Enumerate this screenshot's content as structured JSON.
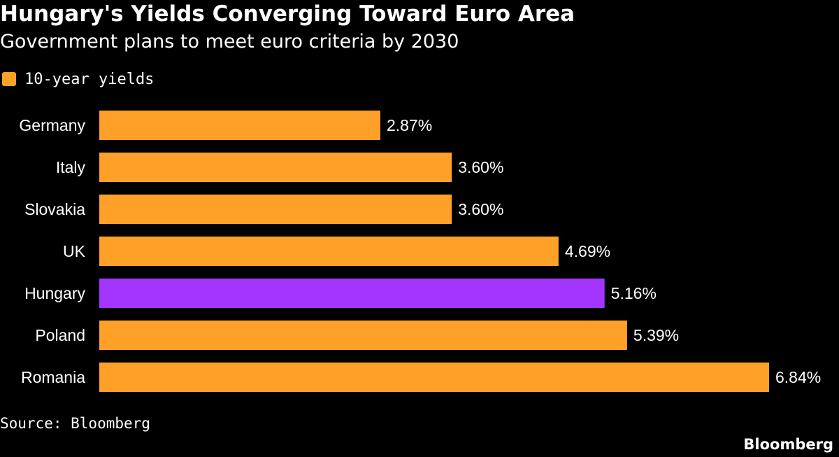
{
  "chart_data": {
    "type": "bar",
    "orientation": "horizontal",
    "title": "Hungary's Yields Converging Toward Euro Area",
    "subtitle": "Government plans to meet euro criteria by 2030",
    "categories": [
      "Germany",
      "Italy",
      "Slovakia",
      "UK",
      "Hungary",
      "Poland",
      "Romania"
    ],
    "series": [
      {
        "name": "10-year yields",
        "values": [
          2.87,
          3.6,
          3.6,
          4.69,
          5.16,
          5.39,
          6.84
        ],
        "value_labels": [
          "2.87%",
          "3.60%",
          "3.60%",
          "4.69%",
          "5.16%",
          "5.39%",
          "6.84%"
        ]
      }
    ],
    "xlim": [
      0,
      6.84
    ],
    "grid": false,
    "legend_position": "top-left",
    "highlight_category": "Hungary",
    "colors": {
      "bar": "#FFA028",
      "highlight": "#A335FF"
    }
  },
  "footer": {
    "source": "Source: Bloomberg",
    "brand": "Bloomberg"
  }
}
